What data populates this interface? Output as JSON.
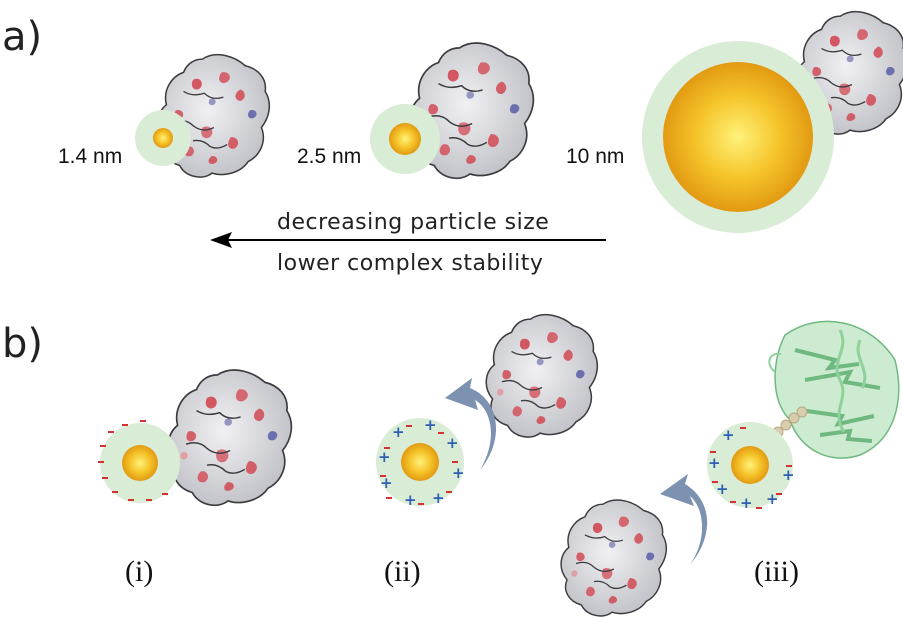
{
  "panel_a": {
    "label": "a)",
    "sizes": [
      {
        "label": "1.4 nm"
      },
      {
        "label": "2.5 nm"
      },
      {
        "label": "10 nm"
      }
    ],
    "arrow_line1": "decreasing particle size",
    "arrow_line2": "lower complex stability"
  },
  "panel_b": {
    "label": "b)",
    "cases": [
      {
        "label": "(i)"
      },
      {
        "label": "(ii)"
      },
      {
        "label": "(iii)"
      }
    ]
  },
  "colors": {
    "shell": "#d9ecd5",
    "core_center": "#fff27a",
    "core_edge": "#e29a12",
    "protein_base": "#d9d9dc",
    "protein_red": "#d1404a",
    "protein_blue": "#5b5ea6",
    "ribbon": "#8fd19b",
    "curved_arrow": "#7d92b0",
    "minus_charge": "#d6302f",
    "plus_charge": "#2f5fb3"
  }
}
